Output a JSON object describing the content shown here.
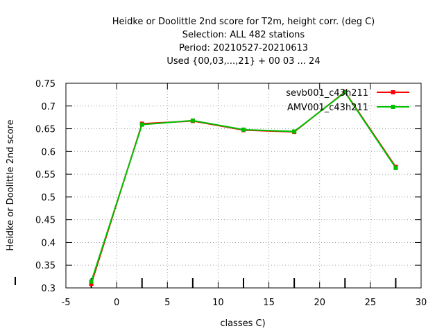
{
  "chart_data": {
    "type": "line",
    "title_lines": [
      "Heidke or Doolittle 2nd score  for T2m, height corr. (deg C)",
      "Selection: ALL    482 stations",
      "Period: 20210527-20210613",
      "Used {00,03,...,21} + 00 03 ... 24"
    ],
    "xlabel": "classes C)",
    "ylabel": "Heidke or Doolittle 2nd score",
    "xlim": [
      -5,
      30
    ],
    "ylim": [
      0.3,
      0.75
    ],
    "x_ticks": [
      -5,
      0,
      5,
      10,
      15,
      20,
      25,
      30
    ],
    "y_ticks": [
      0.3,
      0.35,
      0.4,
      0.45,
      0.5,
      0.55,
      0.6,
      0.65,
      0.7,
      0.75
    ],
    "x_tick_labels": [
      "-5",
      "0",
      "5",
      "10",
      "15",
      "20",
      "25",
      "30"
    ],
    "y_tick_labels": [
      "0.3",
      "0.35",
      "0.4",
      "0.45",
      "0.5",
      "0.55",
      "0.6",
      "0.65",
      "0.7",
      "0.75"
    ],
    "grid": true,
    "legend_position": "top-right",
    "x": [
      -2.5,
      2.5,
      7.5,
      12.5,
      17.5,
      22.5,
      27.5
    ],
    "series": [
      {
        "name": "sevb001_c43h211",
        "color": "#ff0000",
        "values": [
          0.309,
          0.661,
          0.667,
          0.647,
          0.643,
          0.731,
          0.566
        ]
      },
      {
        "name": "AMV001_c43h211",
        "color": "#00c000",
        "values": [
          0.314,
          0.659,
          0.668,
          0.648,
          0.644,
          0.73,
          0.564
        ]
      }
    ]
  }
}
